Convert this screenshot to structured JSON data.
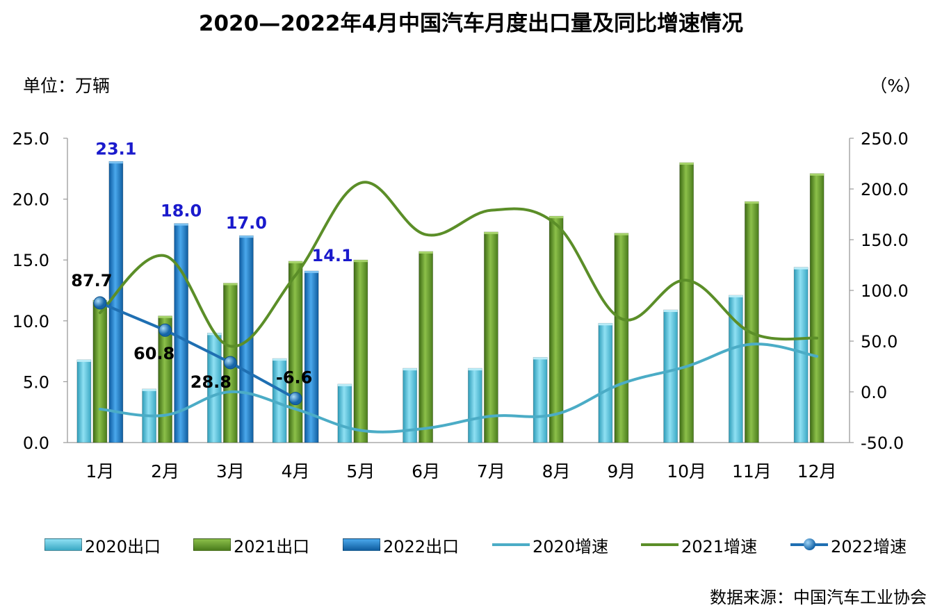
{
  "title": "2020—2022年4月中国汽车月度出口量及同比增速情况",
  "unit_left": "单位：万辆",
  "unit_right": "（%）",
  "source": "数据来源：中国汽车工业协会",
  "colors": {
    "bar_2020": "#5bc8e4",
    "bar_2021": "#5b8e28",
    "bar_2022": "#1b77c9",
    "line_2020": "#4bacc6",
    "line_2021": "#5b8e28",
    "line_2022": "#1f6fb2",
    "label_2022_value": "#1a1acc",
    "axis": "#9a9a9a"
  },
  "chart_data": {
    "type": "bar",
    "categories": [
      "1月",
      "2月",
      "3月",
      "4月",
      "5月",
      "6月",
      "7月",
      "8月",
      "9月",
      "10月",
      "11月",
      "12月"
    ],
    "ylim_left": [
      0,
      25
    ],
    "yticks_left": [
      "0.0",
      "5.0",
      "10.0",
      "15.0",
      "20.0",
      "25.0"
    ],
    "ylim_right": [
      -50,
      250
    ],
    "yticks_right": [
      "-50.0",
      "0.0",
      "50.0",
      "100.0",
      "150.0",
      "200.0",
      "250.0"
    ],
    "bar_series": [
      {
        "name": "2020出口",
        "values": [
          6.8,
          4.4,
          9.0,
          6.9,
          4.8,
          6.1,
          6.1,
          7.0,
          9.8,
          10.9,
          12.1,
          14.4
        ]
      },
      {
        "name": "2021出口",
        "values": [
          11.7,
          10.4,
          13.1,
          14.9,
          15.0,
          15.7,
          17.3,
          18.6,
          17.2,
          23.0,
          19.8,
          22.1
        ]
      },
      {
        "name": "2022出口",
        "values": [
          23.1,
          18.0,
          17.0,
          14.1
        ],
        "labels": [
          "23.1",
          "18.0",
          "17.0",
          "14.1"
        ]
      }
    ],
    "line_series": [
      {
        "name": "2020增速",
        "values": [
          -17,
          -23,
          0,
          -17,
          -38,
          -36,
          -24,
          -22,
          8,
          25,
          47,
          35
        ]
      },
      {
        "name": "2021增速",
        "values": [
          78,
          134,
          45,
          115,
          206,
          155,
          179,
          165,
          72,
          110,
          58,
          53
        ]
      },
      {
        "name": "2022增速",
        "values": [
          87.7,
          60.8,
          28.8,
          -6.6
        ],
        "labels": [
          "87.7",
          "60.8",
          "28.8",
          "-6.6"
        ]
      }
    ],
    "legend": [
      "2020出口",
      "2021出口",
      "2022出口",
      "2020增速",
      "2021增速",
      "2022增速"
    ],
    "legend_position": "bottom",
    "grid": false
  }
}
